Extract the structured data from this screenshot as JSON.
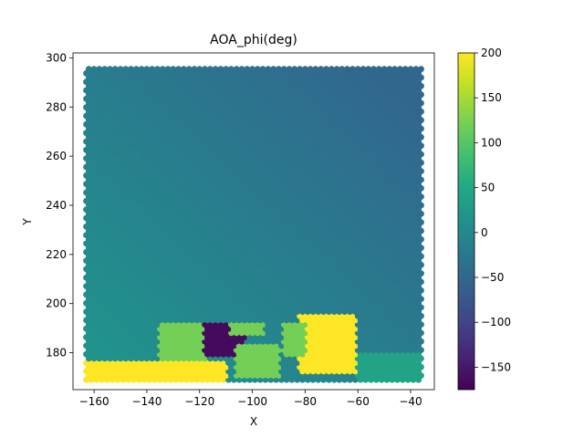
{
  "chart_data": {
    "type": "scatter",
    "title": "AOA_phi(deg)",
    "xlabel": "X",
    "ylabel": "Y",
    "xlim": [
      -168,
      -31
    ],
    "ylim": [
      165,
      302
    ],
    "xticks": [
      -160,
      -140,
      -120,
      -100,
      -80,
      -60,
      -40
    ],
    "xtick_labels": [
      "−160",
      "−140",
      "−120",
      "−100",
      "−80",
      "−60",
      "−40"
    ],
    "yticks": [
      180,
      200,
      220,
      240,
      260,
      280,
      300
    ],
    "ytick_labels": [
      "180",
      "200",
      "220",
      "240",
      "260",
      "280",
      "300"
    ],
    "grid": false,
    "colormap": "viridis",
    "colorbar": {
      "min": -175,
      "max": 200,
      "ticks": [
        200,
        150,
        100,
        50,
        0,
        -50,
        -100,
        -150
      ],
      "tick_labels": [
        "200",
        "150",
        "100",
        "50",
        "0",
        "−50",
        "−100",
        "−150"
      ]
    },
    "point_grid": {
      "x_range": [
        -163,
        -36
      ],
      "y_range": [
        169,
        297
      ],
      "step": 2
    },
    "regions": [
      {
        "description": "background gradient",
        "value_range": [
          -50,
          20
        ]
      },
      {
        "x": [
          -163,
          -110
        ],
        "y": [
          169,
          177
        ],
        "value": 200
      },
      {
        "x": [
          -135,
          -118
        ],
        "y": [
          177,
          192
        ],
        "value": 120
      },
      {
        "x": [
          -118,
          -103
        ],
        "y": [
          179,
          192
        ],
        "value": -165
      },
      {
        "x": [
          -106,
          -90
        ],
        "y": [
          170,
          183
        ],
        "value": 120
      },
      {
        "x": [
          -108,
          -96
        ],
        "y": [
          188,
          193
        ],
        "value": 120
      },
      {
        "x": [
          -82,
          -61
        ],
        "y": [
          172,
          195
        ],
        "value": 200
      },
      {
        "x": [
          -88,
          -80
        ],
        "y": [
          178,
          192
        ],
        "value": 120
      },
      {
        "x": [
          -60,
          -36
        ],
        "y": [
          169,
          180
        ],
        "value": 40
      }
    ]
  }
}
